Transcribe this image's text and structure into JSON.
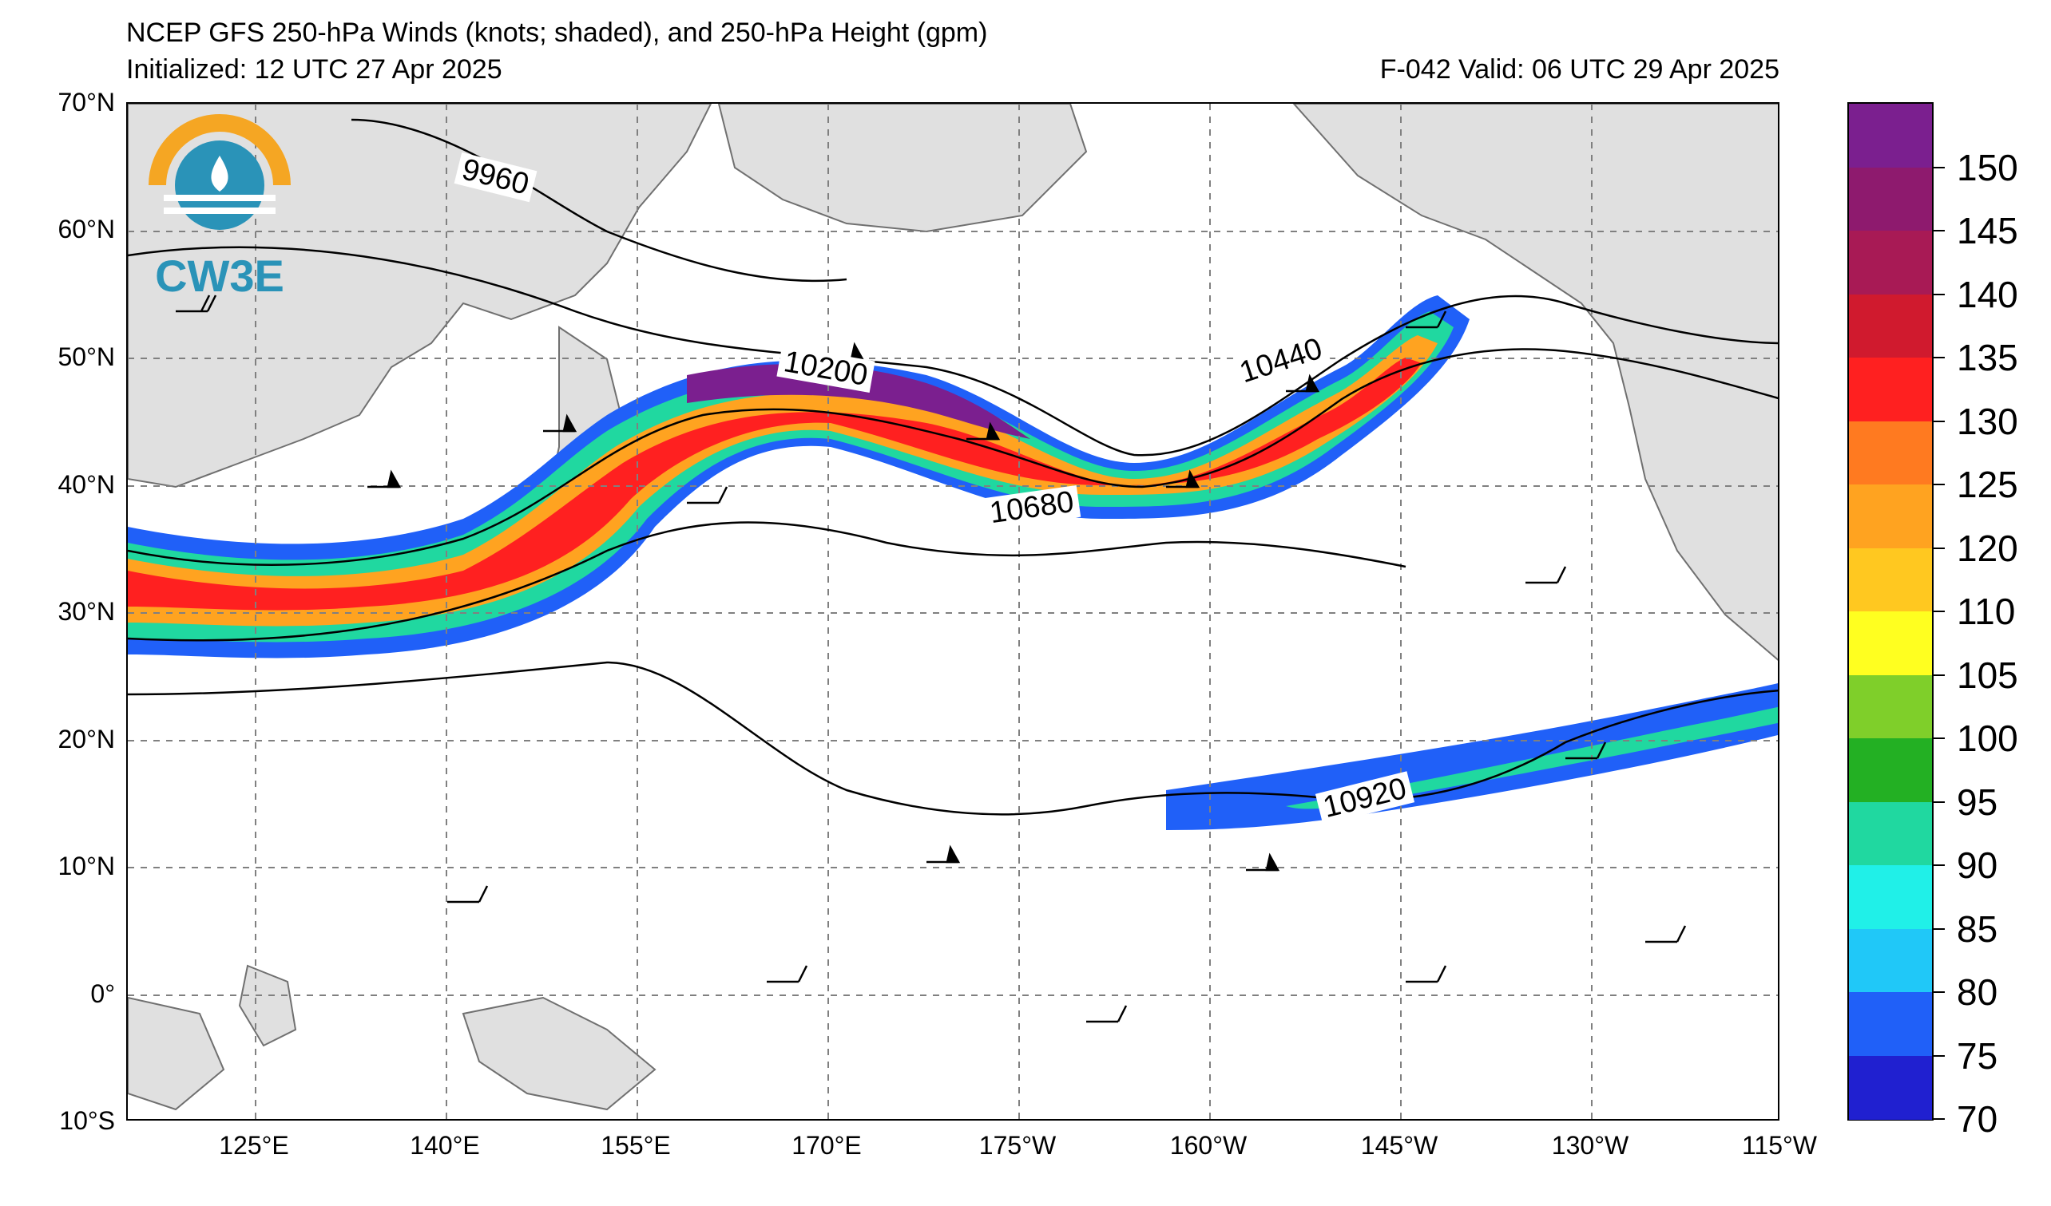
{
  "header": {
    "title": "NCEP GFS 250-hPa Winds (knots; shaded), and 250-hPa Height (gpm)",
    "initialized": "Initialized: 12 UTC 27 Apr 2025",
    "valid": "F-042  Valid: 06 UTC 29 Apr 2025"
  },
  "logo": {
    "text": "CW3E",
    "icon": "cw3e-logo-icon"
  },
  "axes": {
    "lat_labels": [
      "70°N",
      "60°N",
      "50°N",
      "40°N",
      "30°N",
      "20°N",
      "10°N",
      "0°",
      "10°S"
    ],
    "lon_labels": [
      "125°E",
      "140°E",
      "155°E",
      "170°E",
      "175°W",
      "160°W",
      "145°W",
      "130°W",
      "115°W"
    ]
  },
  "contour_labels": [
    "9960",
    "10200",
    "10440",
    "10680",
    "10920"
  ],
  "colorbar": {
    "labels": [
      "150",
      "145",
      "140",
      "135",
      "130",
      "125",
      "120",
      "110",
      "105",
      "100",
      "95",
      "90",
      "85",
      "80",
      "75",
      "70"
    ],
    "colors": [
      "#7b1f8f",
      "#8e1a6e",
      "#a81a55",
      "#d01a2e",
      "#ff2020",
      "#ff7a20",
      "#ffa320",
      "#ffc820",
      "#ffff20",
      "#7fcf2a",
      "#23b023",
      "#20d8a0",
      "#20f0e8",
      "#20c8f8",
      "#2060f8",
      "#2020d0"
    ]
  }
}
